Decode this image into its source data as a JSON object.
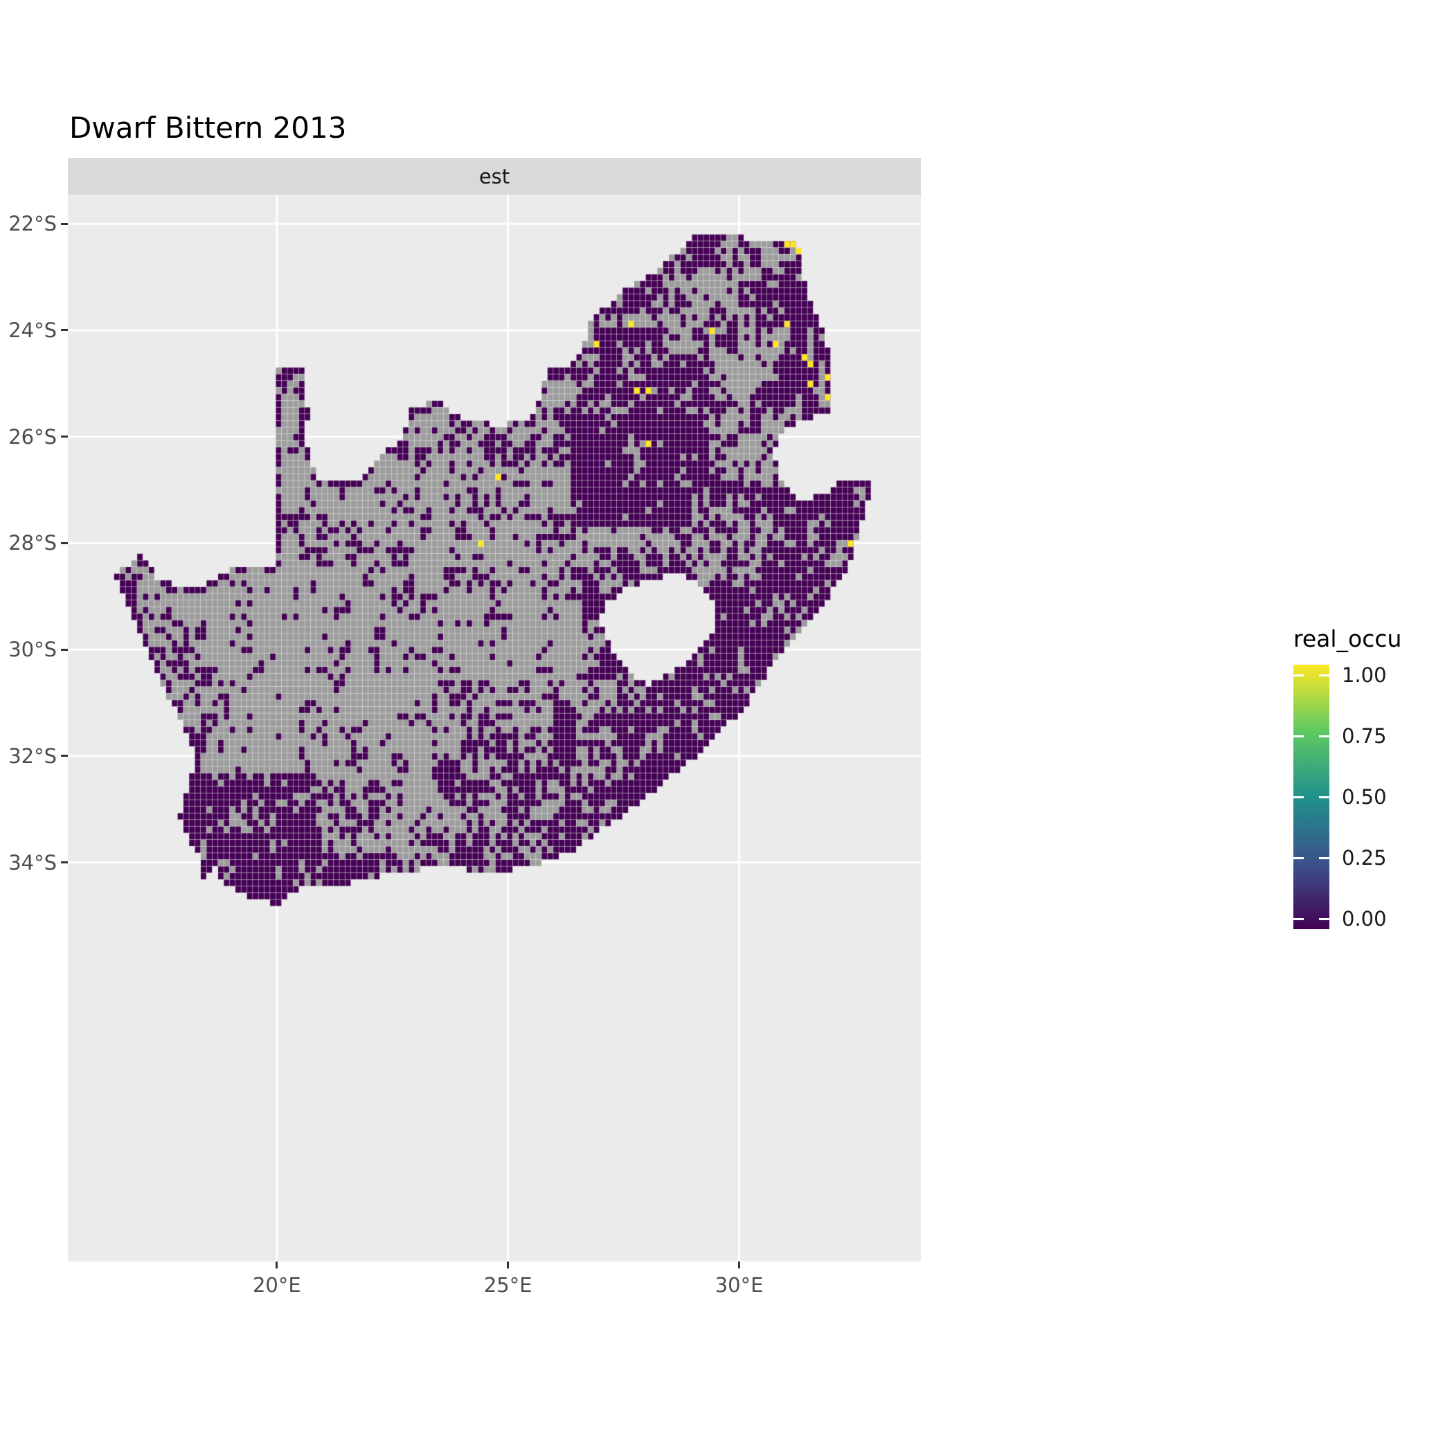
{
  "title": "Dwarf Bittern 2013",
  "facet": {
    "label": "est"
  },
  "axes": {
    "x": {
      "ticks": [
        {
          "label": "20°E",
          "lon": 20
        },
        {
          "label": "25°E",
          "lon": 25
        },
        {
          "label": "30°E",
          "lon": 30
        }
      ]
    },
    "y": {
      "ticks": [
        {
          "label": "22°S",
          "lat": -22
        },
        {
          "label": "24°S",
          "lat": -24
        },
        {
          "label": "26°S",
          "lat": -26
        },
        {
          "label": "28°S",
          "lat": -28
        },
        {
          "label": "30°S",
          "lat": -30
        },
        {
          "label": "32°S",
          "lat": -32
        },
        {
          "label": "34°S",
          "lat": -34
        }
      ]
    }
  },
  "legend": {
    "title": "real_occu",
    "labels": [
      "1.00",
      "0.75",
      "0.50",
      "0.25",
      "0.00"
    ],
    "values": [
      1,
      0.75,
      0.5,
      0.25,
      0
    ],
    "gradient": [
      "#440154",
      "#3b528b",
      "#21918c",
      "#5ec962",
      "#fde725"
    ],
    "position": "right"
  },
  "chart_data": {
    "type": "heatmap",
    "title": "Dwarf Bittern 2013",
    "facet_label": "est",
    "variable": "real_occu",
    "region_depicted": "South Africa occupancy grid",
    "value_range": [
      0,
      1
    ],
    "lon_ticks": [
      20,
      25,
      30
    ],
    "lat_ticks": [
      -22,
      -24,
      -26,
      -28,
      -30,
      -32,
      -34
    ],
    "extent": {
      "lon": [
        15.48,
        33.93
      ],
      "lat": [
        -41.5,
        -21.45
      ]
    },
    "cell_size_deg": 0.125,
    "grid": "on",
    "colors": {
      "na": "#9d9d9d",
      "value_zero": "#440154",
      "value_one": "#fde725",
      "panel": "#ebebeb",
      "gridline": "#ffffff",
      "strip": "#d9d9d9"
    },
    "boundary": [
      [
        16.45,
        -28.58
      ],
      [
        16.8,
        -28.45
      ],
      [
        17.1,
        -28.2
      ],
      [
        17.45,
        -28.7
      ],
      [
        18.2,
        -28.87
      ],
      [
        19.0,
        -28.5
      ],
      [
        19.6,
        -28.48
      ],
      [
        19.98,
        -28.42
      ],
      [
        19.98,
        -24.76
      ],
      [
        20.6,
        -24.76
      ],
      [
        20.68,
        -25.6
      ],
      [
        20.64,
        -26.1
      ],
      [
        20.85,
        -26.8
      ],
      [
        21.7,
        -26.86
      ],
      [
        22.2,
        -26.4
      ],
      [
        22.72,
        -26.02
      ],
      [
        22.88,
        -25.5
      ],
      [
        23.45,
        -25.32
      ],
      [
        24.0,
        -25.65
      ],
      [
        24.75,
        -25.78
      ],
      [
        25.35,
        -25.72
      ],
      [
        25.6,
        -25.48
      ],
      [
        25.9,
        -24.75
      ],
      [
        26.45,
        -24.63
      ],
      [
        26.85,
        -23.75
      ],
      [
        27.6,
        -23.22
      ],
      [
        28.2,
        -22.9
      ],
      [
        29.05,
        -22.22
      ],
      [
        29.6,
        -22.14
      ],
      [
        30.3,
        -22.3
      ],
      [
        31.2,
        -22.32
      ],
      [
        31.55,
        -23.5
      ],
      [
        31.9,
        -24.2
      ],
      [
        32.02,
        -25.1
      ],
      [
        31.98,
        -25.55
      ],
      [
        31.3,
        -25.73
      ],
      [
        30.8,
        -26.0
      ],
      [
        30.78,
        -26.45
      ],
      [
        30.95,
        -26.95
      ],
      [
        31.35,
        -27.2
      ],
      [
        31.95,
        -27.05
      ],
      [
        32.13,
        -26.85
      ],
      [
        32.89,
        -26.85
      ],
      [
        32.55,
        -27.95
      ],
      [
        32.3,
        -28.55
      ],
      [
        31.75,
        -29.25
      ],
      [
        31.05,
        -29.88
      ],
      [
        30.2,
        -31.0
      ],
      [
        29.25,
        -31.9
      ],
      [
        28.3,
        -32.55
      ],
      [
        27.4,
        -33.15
      ],
      [
        26.4,
        -33.78
      ],
      [
        25.65,
        -34.03
      ],
      [
        24.85,
        -34.2
      ],
      [
        23.6,
        -34.1
      ],
      [
        22.55,
        -34.18
      ],
      [
        21.6,
        -34.4
      ],
      [
        20.55,
        -34.47
      ],
      [
        20.0,
        -34.82
      ],
      [
        19.35,
        -34.62
      ],
      [
        18.82,
        -34.36
      ],
      [
        18.75,
        -34.12
      ],
      [
        18.45,
        -34.15
      ],
      [
        18.4,
        -34.35
      ],
      [
        18.32,
        -34.3
      ],
      [
        18.3,
        -33.9
      ],
      [
        17.88,
        -33.15
      ],
      [
        18.0,
        -32.75
      ],
      [
        18.3,
        -32.05
      ],
      [
        17.9,
        -31.3
      ],
      [
        17.35,
        -30.35
      ],
      [
        16.9,
        -29.4
      ]
    ],
    "hole_lesotho": [
      [
        27.02,
        -29.6
      ],
      [
        27.05,
        -29.2
      ],
      [
        27.45,
        -28.9
      ],
      [
        28.05,
        -28.68
      ],
      [
        28.7,
        -28.58
      ],
      [
        29.15,
        -28.8
      ],
      [
        29.45,
        -29.15
      ],
      [
        29.42,
        -29.65
      ],
      [
        29.1,
        -30.1
      ],
      [
        28.55,
        -30.42
      ],
      [
        28.05,
        -30.66
      ],
      [
        27.7,
        -30.5
      ],
      [
        27.3,
        -30.05
      ]
    ],
    "occupied_cells": [
      [
        31.05,
        -22.4
      ],
      [
        31.2,
        -22.38
      ],
      [
        31.28,
        -22.5
      ],
      [
        31.1,
        -23.92
      ],
      [
        30.75,
        -24.28
      ],
      [
        31.42,
        -24.48
      ],
      [
        31.58,
        -24.58
      ],
      [
        31.9,
        -24.85
      ],
      [
        31.6,
        -25.02
      ],
      [
        31.95,
        -25.22
      ],
      [
        27.65,
        -23.9
      ],
      [
        26.9,
        -24.28
      ],
      [
        29.4,
        -24.05
      ],
      [
        27.78,
        -25.1
      ],
      [
        28.02,
        -25.18
      ],
      [
        28.05,
        -26.12
      ],
      [
        24.75,
        -26.78
      ],
      [
        24.38,
        -28.02
      ],
      [
        32.4,
        -28.05
      ]
    ],
    "base_density": 0.32,
    "density_regions_format": "[lonMin, lonMax, latMin, latMax, fraction_of_cells_with_value_0 (rest are NA grey)] - later entries override",
    "density_regions": [
      [
        19.8,
        25.8,
        -29.2,
        -26.3,
        0.22
      ],
      [
        19.5,
        26.8,
        -32.5,
        -29.0,
        0.17
      ],
      [
        16.4,
        19.5,
        -31.8,
        -28.4,
        0.3
      ],
      [
        16.8,
        18.6,
        -32.6,
        -30.0,
        0.45
      ],
      [
        24.3,
        27.6,
        -26.6,
        -24.6,
        0.5
      ],
      [
        26.8,
        32.3,
        -25.6,
        -22.0,
        0.7
      ],
      [
        28.3,
        30.3,
        -24.4,
        -22.8,
        0.38
      ],
      [
        29.4,
        30.9,
        -25.2,
        -24.3,
        0.35
      ],
      [
        30.9,
        32.2,
        -25.5,
        -22.2,
        0.85
      ],
      [
        26.35,
        29.35,
        -27.75,
        -25.55,
        0.96
      ],
      [
        26.6,
        29.9,
        -31.2,
        -28.1,
        0.7
      ],
      [
        29.3,
        32.95,
        -31.3,
        -26.8,
        0.85
      ],
      [
        29.0,
        30.7,
        -28.7,
        -27.1,
        0.5
      ],
      [
        31.6,
        32.95,
        -28.7,
        -26.8,
        0.9
      ],
      [
        23.3,
        27.3,
        -33.2,
        -30.6,
        0.5
      ],
      [
        26.0,
        30.3,
        -33.8,
        -31.2,
        0.78
      ],
      [
        20.8,
        26.2,
        -34.6,
        -33.3,
        0.65
      ],
      [
        20.9,
        23.2,
        -33.8,
        -33.1,
        0.35
      ],
      [
        17.8,
        20.9,
        -35.0,
        -32.3,
        0.9
      ]
    ]
  }
}
